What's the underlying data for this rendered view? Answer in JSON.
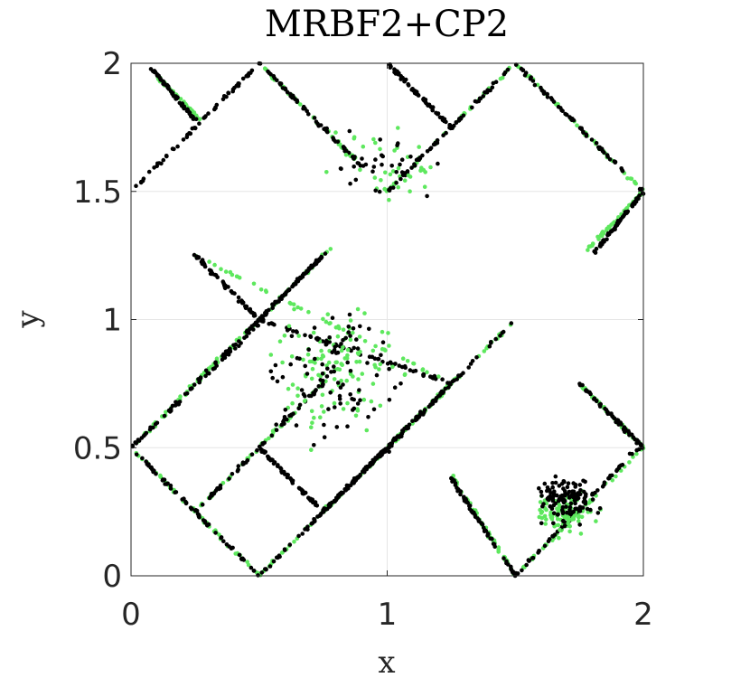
{
  "chart_data": {
    "type": "scatter",
    "title": "MRBF2+CP2",
    "xlabel": "x",
    "ylabel": "y",
    "xlim": [
      0,
      2
    ],
    "ylim": [
      0,
      2
    ],
    "xticks": [
      "0",
      "1",
      "2"
    ],
    "xtick_values": [
      0,
      1,
      2
    ],
    "yticks": [
      "0",
      "0.5",
      "1",
      "1.5",
      "2"
    ],
    "ytick_values": [
      0,
      0.5,
      1,
      1.5,
      2
    ],
    "grid": true,
    "legend": "none",
    "series": [
      {
        "color": "#000000",
        "segments": [
          [
            [
              0.02,
              0.48
            ],
            [
              0.5,
              0.0
            ]
          ],
          [
            [
              0.0,
              0.5
            ],
            [
              0.52,
              1.0
            ]
          ],
          [
            [
              0.5,
              1.0
            ],
            [
              0.76,
              1.26
            ]
          ],
          [
            [
              0.25,
              0.75
            ],
            [
              0.76,
              1.26
            ]
          ],
          [
            [
              0.25,
              1.25
            ],
            [
              0.5,
              1.0
            ]
          ],
          [
            [
              0.5,
              1.0
            ],
            [
              1.25,
              0.75
            ]
          ],
          [
            [
              0.5,
              0.0
            ],
            [
              1.0,
              0.5
            ]
          ],
          [
            [
              0.25,
              0.25
            ],
            [
              0.75,
              0.75
            ]
          ],
          [
            [
              0.75,
              0.25
            ],
            [
              1.0,
              0.5
            ]
          ],
          [
            [
              0.75,
              0.25
            ],
            [
              1.5,
              1.0
            ]
          ],
          [
            [
              0.5,
              0.5
            ],
            [
              0.75,
              0.25
            ]
          ],
          [
            [
              1.0,
              0.5
            ],
            [
              1.25,
              0.75
            ]
          ],
          [
            [
              1.0,
              1.5
            ],
            [
              1.5,
              2.0
            ]
          ],
          [
            [
              1.5,
              2.0
            ],
            [
              2.0,
              1.5
            ]
          ],
          [
            [
              1.8,
              1.25
            ],
            [
              2.0,
              1.5
            ]
          ],
          [
            [
              1.25,
              0.38
            ],
            [
              1.5,
              0.0
            ]
          ],
          [
            [
              1.5,
              0.0
            ],
            [
              1.98,
              0.5
            ]
          ],
          [
            [
              1.75,
              0.75
            ],
            [
              2.0,
              0.5
            ]
          ],
          [
            [
              0.5,
              2.0
            ],
            [
              0.9,
              1.6
            ]
          ],
          [
            [
              0.0,
              1.5
            ],
            [
              0.5,
              2.0
            ]
          ],
          [
            [
              0.08,
              1.98
            ],
            [
              0.25,
              1.78
            ]
          ],
          [
            [
              1.0,
              2.0
            ],
            [
              1.25,
              1.75
            ]
          ]
        ],
        "points_per_segment": 60
      },
      {
        "color": "#5ee85e",
        "segments": [
          [
            [
              0.0,
              0.5
            ],
            [
              0.5,
              0.0
            ]
          ],
          [
            [
              0.0,
              0.5
            ],
            [
              0.5,
              1.0
            ]
          ],
          [
            [
              0.25,
              0.75
            ],
            [
              0.78,
              1.28
            ]
          ],
          [
            [
              0.25,
              1.25
            ],
            [
              1.25,
              0.75
            ]
          ],
          [
            [
              0.5,
              0.0
            ],
            [
              1.0,
              0.5
            ]
          ],
          [
            [
              0.25,
              0.25
            ],
            [
              0.75,
              0.75
            ]
          ],
          [
            [
              0.75,
              0.25
            ],
            [
              1.5,
              1.0
            ]
          ],
          [
            [
              1.0,
              0.5
            ],
            [
              1.25,
              0.75
            ]
          ],
          [
            [
              1.0,
              1.5
            ],
            [
              1.5,
              2.0
            ]
          ],
          [
            [
              1.5,
              2.0
            ],
            [
              2.0,
              1.5
            ]
          ],
          [
            [
              1.78,
              1.27
            ],
            [
              2.0,
              1.5
            ]
          ],
          [
            [
              1.25,
              0.4
            ],
            [
              1.5,
              0.0
            ]
          ],
          [
            [
              1.5,
              0.0
            ],
            [
              2.0,
              0.5
            ]
          ],
          [
            [
              1.75,
              0.75
            ],
            [
              2.0,
              0.5
            ]
          ],
          [
            [
              0.5,
              2.0
            ],
            [
              0.88,
              1.62
            ]
          ],
          [
            [
              0.1,
              1.95
            ],
            [
              0.27,
              1.78
            ]
          ]
        ],
        "points_per_segment": 45
      }
    ],
    "clusters": [
      {
        "color": "#000000",
        "center": [
          1.7,
          0.3
        ],
        "spread": [
          0.22,
          0.18
        ],
        "count": 120
      },
      {
        "color": "#5ee85e",
        "center": [
          1.7,
          0.25
        ],
        "spread": [
          0.22,
          0.16
        ],
        "count": 90
      },
      {
        "color": "#000000",
        "center": [
          0.8,
          0.8
        ],
        "spread": [
          0.45,
          0.55
        ],
        "count": 90
      },
      {
        "color": "#5ee85e",
        "center": [
          0.8,
          0.8
        ],
        "spread": [
          0.45,
          0.55
        ],
        "count": 110
      },
      {
        "color": "#000000",
        "center": [
          1.0,
          1.6
        ],
        "spread": [
          0.45,
          0.3
        ],
        "count": 30
      },
      {
        "color": "#5ee85e",
        "center": [
          1.0,
          1.6
        ],
        "spread": [
          0.45,
          0.3
        ],
        "count": 35
      }
    ]
  }
}
